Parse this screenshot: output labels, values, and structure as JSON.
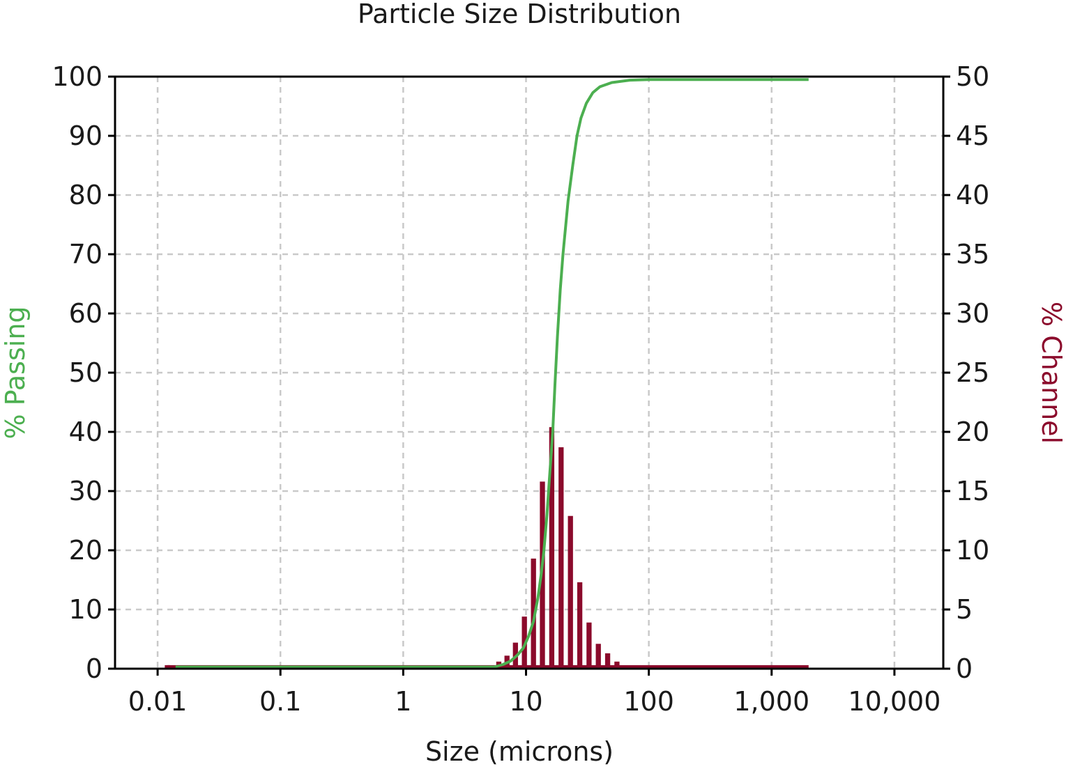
{
  "chart_data": {
    "type": "bar+line",
    "title": "Particle Size Distribution",
    "xlabel": "Size (microns)",
    "y1label": "% Passing",
    "y2label": "% Channel",
    "x_scale": "log",
    "xlim": [
      0.0045,
      25000
    ],
    "y1lim": [
      0,
      100
    ],
    "y2lim": [
      0,
      50
    ],
    "x_ticks": [
      0.01,
      0.1,
      1,
      10,
      100,
      1000,
      10000
    ],
    "x_tick_labels": [
      "0.01",
      "0.1",
      "1",
      "10",
      "100",
      "1,000",
      "10,000"
    ],
    "y1_ticks": [
      0,
      10,
      20,
      30,
      40,
      50,
      60,
      70,
      80,
      90,
      100
    ],
    "y1_tick_labels": [
      "0",
      "10",
      "20",
      "30",
      "40",
      "50",
      "60",
      "70",
      "80",
      "90",
      "100"
    ],
    "y2_ticks": [
      0,
      5,
      10,
      15,
      20,
      25,
      30,
      35,
      40,
      45,
      50
    ],
    "y2_tick_labels": [
      "0",
      "5",
      "10",
      "15",
      "20",
      "25",
      "30",
      "35",
      "40",
      "45",
      "50"
    ],
    "grid": true,
    "colors": {
      "passing": "#4caf50",
      "channel": "#8b0a2b",
      "y1label": "#4caf50",
      "y2label": "#8b0a2b"
    },
    "series": [
      {
        "name": "% Passing",
        "axis": "left",
        "kind": "line",
        "points": [
          [
            0.014,
            0.3
          ],
          [
            5.5,
            0.3
          ],
          [
            6.5,
            0.7
          ],
          [
            7.5,
            1.3
          ],
          [
            8.5,
            2.3
          ],
          [
            9.5,
            3.5
          ],
          [
            10.5,
            5.5
          ],
          [
            11.5,
            8
          ],
          [
            12.5,
            12
          ],
          [
            13.3,
            16
          ],
          [
            14,
            20
          ],
          [
            14.8,
            26
          ],
          [
            15.5,
            32
          ],
          [
            16.5,
            40
          ],
          [
            17.2,
            48
          ],
          [
            18,
            56
          ],
          [
            19,
            64
          ],
          [
            20,
            70
          ],
          [
            22,
            79
          ],
          [
            24,
            85
          ],
          [
            26,
            90
          ],
          [
            28,
            93
          ],
          [
            31,
            95.5
          ],
          [
            35,
            97.3
          ],
          [
            40,
            98.3
          ],
          [
            50,
            99
          ],
          [
            70,
            99.4
          ],
          [
            100,
            99.5
          ],
          [
            2000,
            99.5
          ]
        ]
      },
      {
        "name": "% Channel",
        "axis": "right",
        "kind": "bar",
        "bins": [
          {
            "x": 0.012,
            "value": 0.3
          },
          {
            "x": 6.0,
            "value": 0.6
          },
          {
            "x": 7.0,
            "value": 1.1
          },
          {
            "x": 8.2,
            "value": 2.2
          },
          {
            "x": 9.7,
            "value": 4.4
          },
          {
            "x": 11.5,
            "value": 9.3
          },
          {
            "x": 13.6,
            "value": 15.8
          },
          {
            "x": 16.2,
            "value": 20.4
          },
          {
            "x": 19.3,
            "value": 18.7
          },
          {
            "x": 23.0,
            "value": 12.9
          },
          {
            "x": 27.4,
            "value": 7.3
          },
          {
            "x": 32.6,
            "value": 3.9
          },
          {
            "x": 38.8,
            "value": 2.1
          },
          {
            "x": 46.2,
            "value": 1.3
          },
          {
            "x": 55.0,
            "value": 0.6
          }
        ],
        "baseline_strip": {
          "from": 0.012,
          "to": 2000,
          "value": 0.3
        }
      }
    ]
  }
}
